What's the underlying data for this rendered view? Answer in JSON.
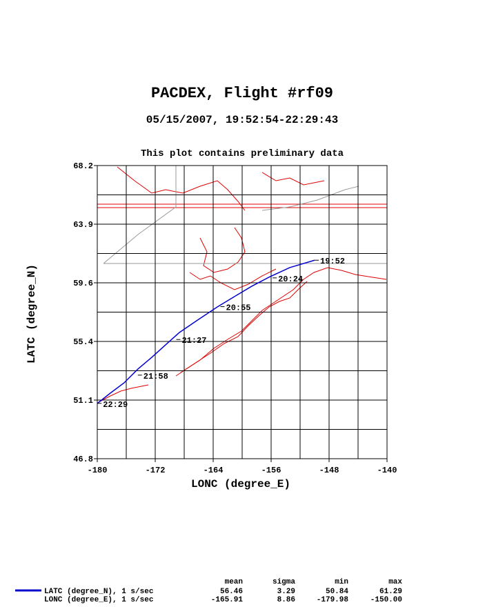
{
  "chart_data": {
    "type": "line",
    "title": "PACDEX, Flight #rf09",
    "subtitle": "05/15/2007, 19:52:54-22:29:43",
    "note": "This plot contains preliminary data",
    "x_label": "LONC (degree_E)",
    "y_label": "LATC (degree_N)",
    "x": [
      -150.0,
      -153.43,
      -156.29,
      -158.67,
      -161.05,
      -163.43,
      -166.29,
      -168.67,
      -170.57,
      -172.48,
      -174.38,
      -176.29,
      -178.19,
      -179.98
    ],
    "series": [
      {
        "name": "LATC (degree_N), 1 s/sec",
        "color": "#0000cc",
        "values": [
          61.29,
          60.75,
          60.05,
          59.39,
          58.64,
          57.88,
          56.87,
          56.01,
          55.11,
          54.2,
          53.35,
          52.34,
          51.59,
          50.84
        ]
      }
    ],
    "xlim": [
      -180,
      -140
    ],
    "ylim": [
      46.8,
      68.2
    ],
    "xticks": [
      -180,
      -172,
      -164,
      -156,
      -148,
      -140
    ],
    "yticks": [
      {
        "value": 46.8,
        "label": "46.8"
      },
      {
        "value": 51.08,
        "label": "51.1"
      },
      {
        "value": 55.36,
        "label": "55.4"
      },
      {
        "value": 59.64,
        "label": "59.6"
      },
      {
        "value": 63.92,
        "label": "63.9"
      },
      {
        "value": 68.2,
        "label": "68.2"
      }
    ],
    "xgrid": [
      -176,
      -172,
      -168,
      -164,
      -160,
      -156,
      -152,
      -148,
      -144
    ],
    "ygrid": [
      48.94,
      51.08,
      53.22,
      55.36,
      57.5,
      59.64,
      61.78,
      63.92,
      66.06
    ],
    "annotations": [
      {
        "text": "19:52",
        "x": -150.0,
        "y": 61.29
      },
      {
        "text": "20:24",
        "x": -155.8,
        "y": 60.0
      },
      {
        "text": "20:55",
        "x": -163.0,
        "y": 57.9
      },
      {
        "text": "21:27",
        "x": -169.1,
        "y": 55.5
      },
      {
        "text": "21:58",
        "x": -174.4,
        "y": 52.9
      },
      {
        "text": "22:29",
        "x": -179.98,
        "y": 50.84
      }
    ]
  },
  "stats": {
    "columns": [
      "mean",
      "sigma",
      "min",
      "max"
    ],
    "rows": [
      {
        "values": [
          "56.46",
          "3.29",
          "50.84",
          "61.29"
        ]
      },
      {
        "name": "LONC (degree_E), 1 s/sec",
        "values": [
          "-165.91",
          "8.86",
          "-179.98",
          "-150.00"
        ]
      }
    ]
  }
}
